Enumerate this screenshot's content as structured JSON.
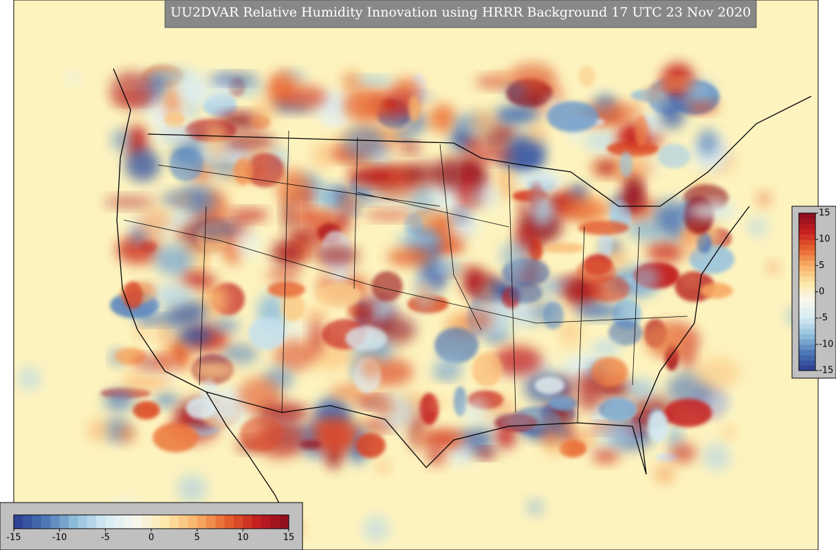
{
  "map": {
    "title": "UU2DVAR Relative Humidity Innovation using HRRR Background 17 UTC 23 Nov 2020",
    "colormap": [
      "#2a3b8f",
      "#4a74b4",
      "#8fbedb",
      "#d6ebf2",
      "#f8f8f0",
      "#fce8a8",
      "#f9b068",
      "#e6602e",
      "#c21d1f",
      "#8a0d1e"
    ],
    "colorbars": [
      {
        "orientation": "horizontal",
        "lim": [
          -15,
          15
        ],
        "ticks": [
          -15,
          -10,
          -5,
          0,
          5,
          10,
          15
        ]
      },
      {
        "orientation": "vertical",
        "lim": [
          -15,
          15
        ],
        "ticks": [
          15,
          10,
          5,
          0,
          -5,
          -10,
          -15
        ]
      }
    ]
  }
}
